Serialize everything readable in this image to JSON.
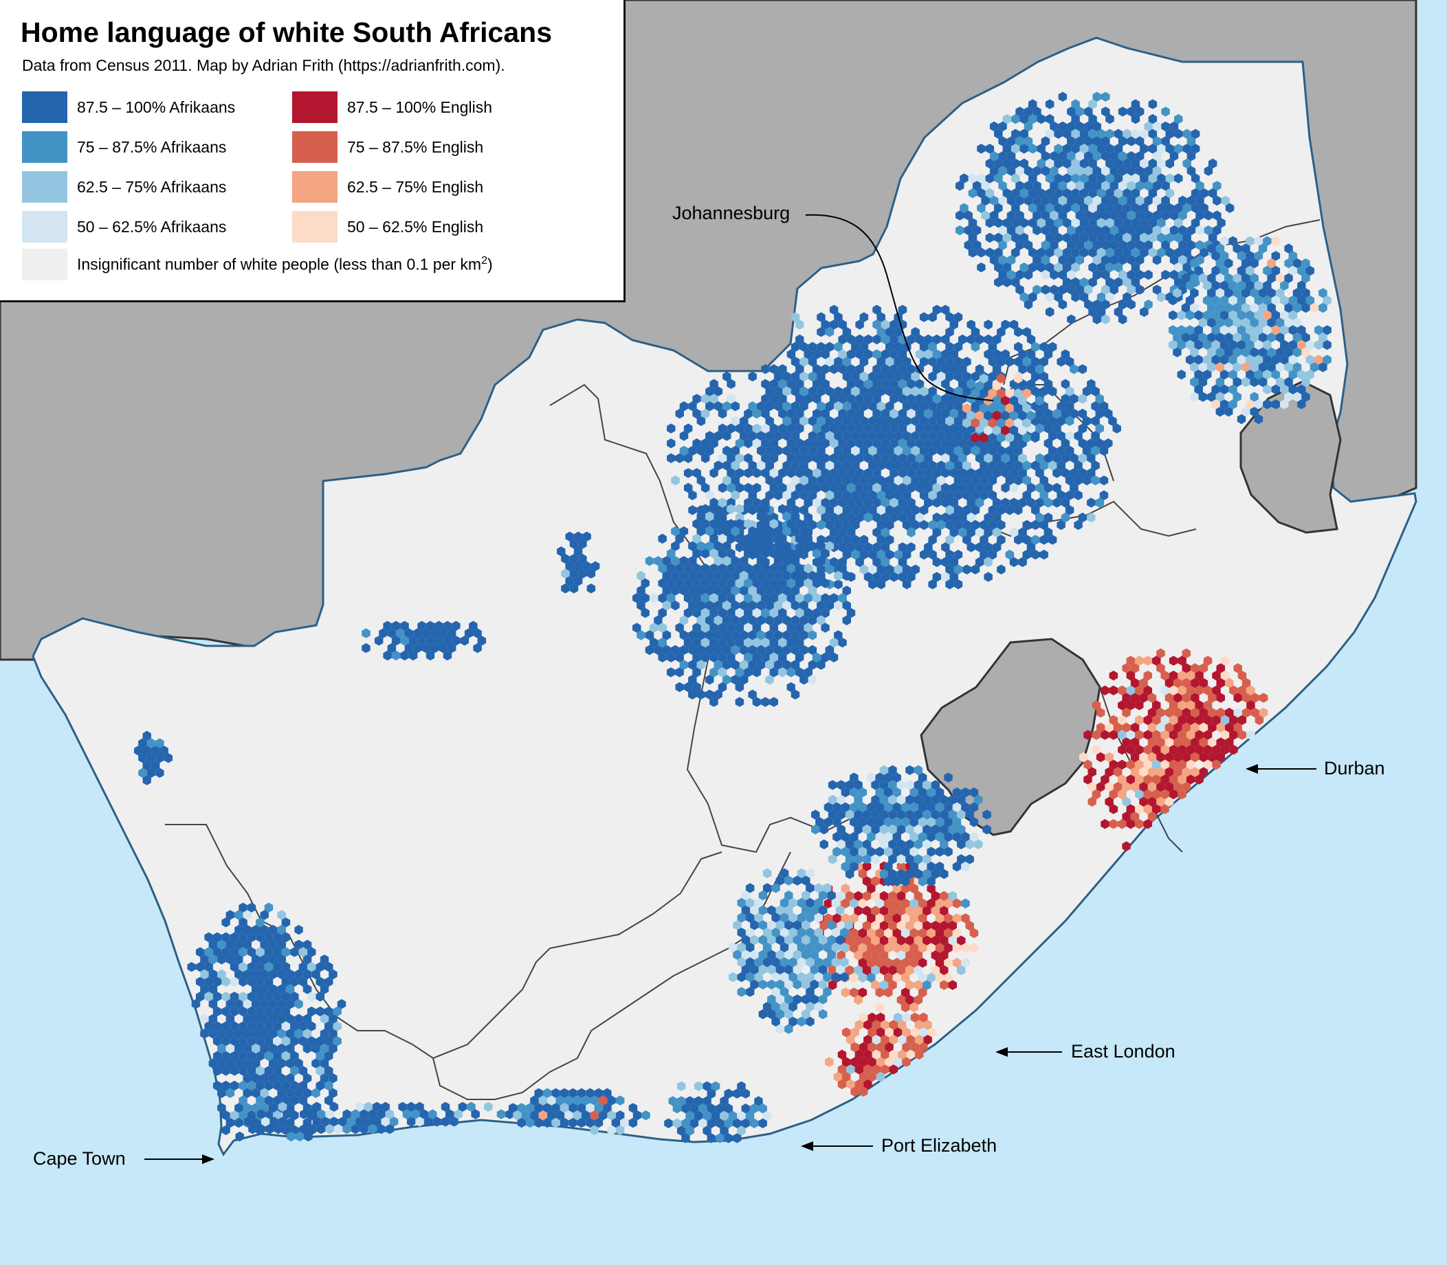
{
  "title": "Home language of white South Africans",
  "subtitle": "Data from Census 2011. Map by Adrian Frith (https://adrianfrith.com).",
  "legend": {
    "afrikaans": [
      {
        "label": "87.5 – 100% Afrikaans",
        "color": "#2465ae"
      },
      {
        "label": "75 – 87.5% Afrikaans",
        "color": "#4393c6"
      },
      {
        "label": "62.5 – 75% Afrikaans",
        "color": "#93c5e0"
      },
      {
        "label": "50 – 62.5% Afrikaans",
        "color": "#d2e5f1"
      }
    ],
    "english": [
      {
        "label": "87.5 – 100% English",
        "color": "#b3162f"
      },
      {
        "label": "75 – 87.5% English",
        "color": "#d6604d"
      },
      {
        "label": "62.5 – 75% English",
        "color": "#f4a582"
      },
      {
        "label": "50 – 62.5% English",
        "color": "#fddbc7"
      }
    ],
    "insignificant": {
      "label": "Insignificant number of white people (less than 0.1 per km",
      "sup": "2",
      "close": ")",
      "color": "#efefef"
    }
  },
  "cities": {
    "johannesburg": "Johannesburg",
    "durban": "Durban",
    "east_london": "East London",
    "port_elizabeth": "Port Elizabeth",
    "cape_town": "Cape Town"
  },
  "colors": {
    "sea": "#c6e8f8",
    "neighbours": "#adadad",
    "land": "#efefef"
  }
}
